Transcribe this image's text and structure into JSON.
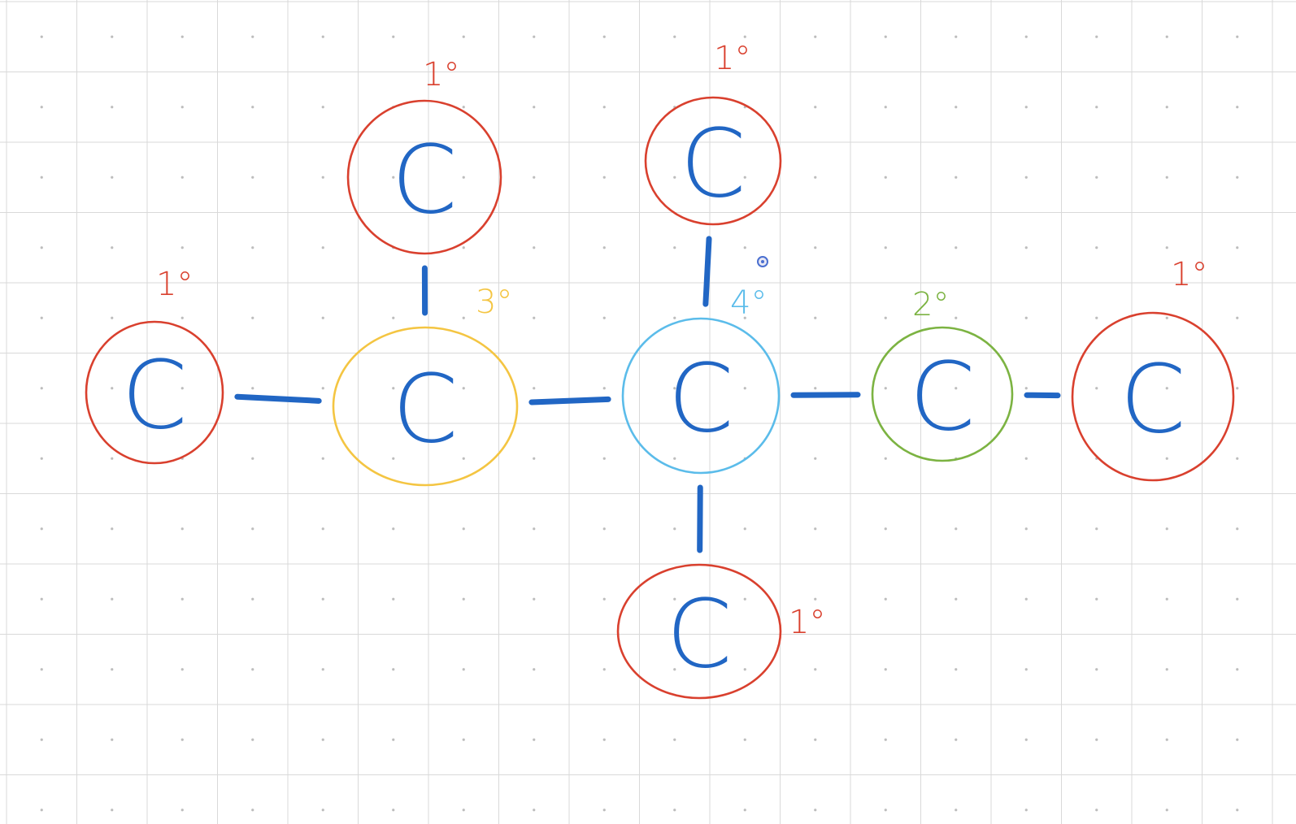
{
  "colors": {
    "bond": "#2166c4",
    "atom_text": "#2166c4",
    "primary": "#d9402e",
    "secondary": "#7cb342",
    "tertiary": "#f4c542",
    "quaternary": "#5bbcea",
    "grid": "#d9d9d9",
    "background": "#ffffff"
  },
  "atoms": [
    {
      "id": "c1",
      "symbol": "C",
      "degree": "1°",
      "class": "primary"
    },
    {
      "id": "c2",
      "symbol": "C",
      "degree": "3°",
      "class": "tertiary"
    },
    {
      "id": "c2-top",
      "symbol": "C",
      "degree": "1°",
      "class": "primary"
    },
    {
      "id": "c3",
      "symbol": "C",
      "degree": "4°",
      "class": "quaternary"
    },
    {
      "id": "c3-top",
      "symbol": "C",
      "degree": "1°",
      "class": "primary"
    },
    {
      "id": "c3-bottom",
      "symbol": "C",
      "degree": "1°",
      "class": "primary"
    },
    {
      "id": "c4",
      "symbol": "C",
      "degree": "2°",
      "class": "secondary"
    },
    {
      "id": "c5",
      "symbol": "C",
      "degree": "1°",
      "class": "primary"
    }
  ],
  "bonds": [
    [
      "c1",
      "c2"
    ],
    [
      "c2",
      "c2-top"
    ],
    [
      "c2",
      "c3"
    ],
    [
      "c3",
      "c3-top"
    ],
    [
      "c3",
      "c3-bottom"
    ],
    [
      "c3",
      "c4"
    ],
    [
      "c4",
      "c5"
    ]
  ]
}
